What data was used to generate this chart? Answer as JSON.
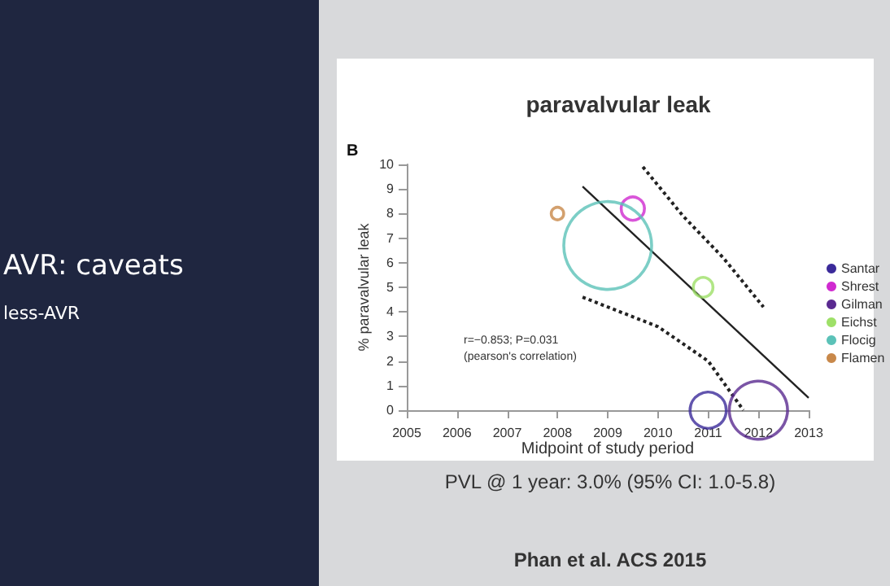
{
  "chart_data": {
    "type": "bubble",
    "title": "paravalvular leak",
    "xlabel": "Midpoint of study period",
    "ylabel": "% paravalvular leak",
    "xlim": [
      2005,
      2013
    ],
    "xticks": [
      2005,
      2006,
      2007,
      2008,
      2009,
      2010,
      2011,
      2012,
      2013
    ],
    "ylim": [
      0,
      10
    ],
    "yticks": [
      0,
      1,
      2,
      3,
      4,
      5,
      6,
      7,
      8,
      9,
      10
    ],
    "grid": false,
    "legend": "right",
    "marker": "circle",
    "series": [
      {
        "name": "Santar",
        "color": "#3b2a9a",
        "x": [
          2011.0
        ],
        "values": [
          0
        ],
        "sizes": [
          0.17
        ]
      },
      {
        "name": "Shrest",
        "color": "#d02ad0",
        "x": [
          2009.5
        ],
        "values": [
          8.2
        ],
        "sizes": [
          0.07
        ]
      },
      {
        "name": "Gilman",
        "color": "#5a2a90",
        "x": [
          2012.0
        ],
        "values": [
          0
        ],
        "sizes": [
          0.44
        ]
      },
      {
        "name": "Eichst",
        "color": "#9ee068",
        "x": [
          2010.9
        ],
        "values": [
          5.0
        ],
        "sizes": [
          0.05
        ]
      },
      {
        "name": "Flocig",
        "color": "#5bc2b8",
        "x": [
          2009.0
        ],
        "values": [
          6.7
        ],
        "sizes": [
          1
        ]
      },
      {
        "name": "Flamen",
        "color": "#c8884a",
        "x": [
          2008.0
        ],
        "values": [
          8.0
        ],
        "sizes": [
          0.02
        ]
      },
      {
        "type": "line",
        "color": "#222222",
        "marker": "none",
        "line_style": "solid",
        "x": [
          2008.5,
          2013.0
        ],
        "values": [
          9.1,
          0.5
        ]
      },
      {
        "type": "line",
        "color": "#222222",
        "marker": "none",
        "line_style": "dotted",
        "x": [
          2009.7,
          2010.5,
          2011.3,
          2012.1
        ],
        "values": [
          9.9,
          7.9,
          6.2,
          4.2
        ]
      },
      {
        "type": "line",
        "color": "#222222",
        "marker": "none",
        "line_style": "dotted",
        "x": [
          2008.5,
          2010.0,
          2011.0,
          2011.7
        ],
        "values": [
          4.6,
          3.4,
          2.0,
          0
        ]
      }
    ],
    "annotations": [
      "B",
      "r=−0.853; P=0.031",
      "(pearson's correlation)",
      "PVL @ 1 year: 3.0% (95% CI: 1.0-5.8)",
      "Phan et al. ACS 2015",
      "AVR: caveats",
      "less-AVR"
    ]
  }
}
